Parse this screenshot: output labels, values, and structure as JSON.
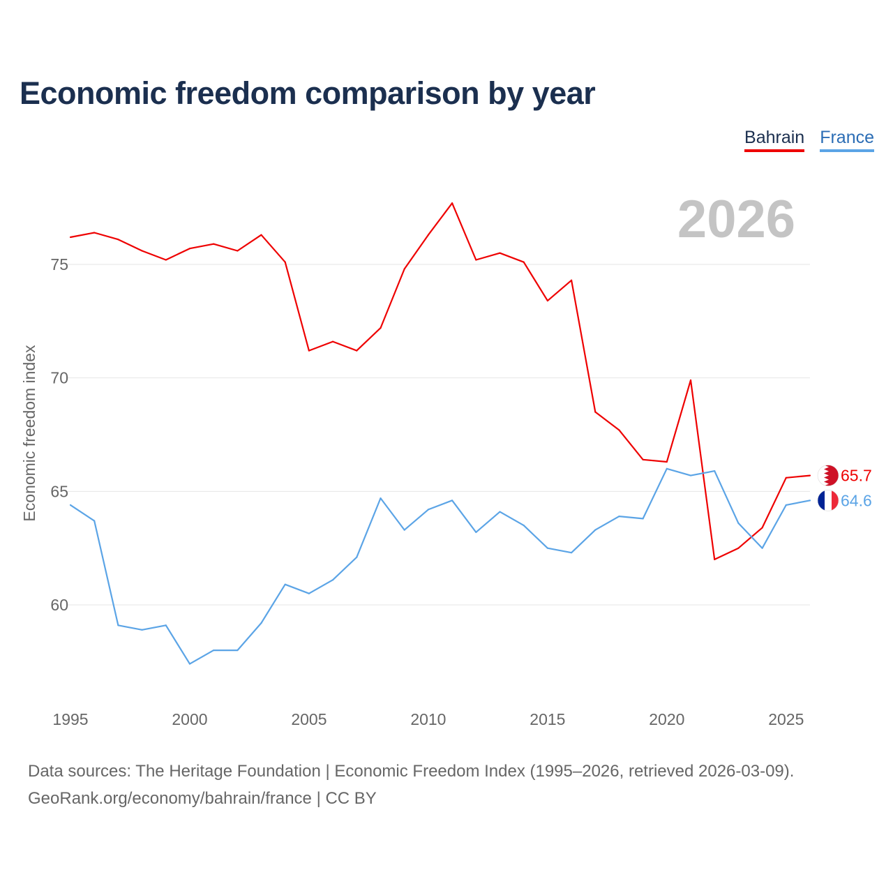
{
  "chart_data": {
    "type": "line",
    "title": "Economic freedom comparison by year",
    "ylabel": "Economic freedom index",
    "xlabel": "",
    "year_label": "2026",
    "x": [
      1995,
      1996,
      1997,
      1998,
      1999,
      2000,
      2001,
      2002,
      2003,
      2004,
      2005,
      2006,
      2007,
      2008,
      2009,
      2010,
      2011,
      2012,
      2013,
      2014,
      2015,
      2016,
      2017,
      2018,
      2019,
      2020,
      2021,
      2022,
      2023,
      2024,
      2025,
      2026
    ],
    "xlim": [
      1995,
      2026
    ],
    "ylim": [
      56.5,
      79
    ],
    "x_ticks": [
      1995,
      2000,
      2005,
      2010,
      2015,
      2020,
      2025
    ],
    "y_ticks": [
      60,
      65,
      70,
      75
    ],
    "series": [
      {
        "name": "Bahrain",
        "color": "#ee0000",
        "values": [
          76.2,
          76.4,
          76.1,
          75.6,
          75.2,
          75.7,
          75.9,
          75.6,
          76.3,
          75.1,
          71.2,
          71.6,
          71.2,
          72.2,
          74.8,
          76.3,
          77.7,
          75.2,
          75.5,
          75.1,
          73.4,
          74.3,
          68.5,
          67.7,
          66.4,
          66.3,
          69.9,
          62.0,
          62.5,
          63.4,
          65.6,
          65.7
        ],
        "end_label": "65.7",
        "flag_icon": "bahrain-flag-icon"
      },
      {
        "name": "France",
        "color": "#5ba4e6",
        "values": [
          64.4,
          63.7,
          59.1,
          58.9,
          59.1,
          57.4,
          58.0,
          58.0,
          59.2,
          60.9,
          60.5,
          61.1,
          62.1,
          64.7,
          63.3,
          64.2,
          64.6,
          63.2,
          64.1,
          63.5,
          62.5,
          62.3,
          63.3,
          63.9,
          63.8,
          66.0,
          65.7,
          65.9,
          63.6,
          62.5,
          64.4,
          64.6
        ],
        "end_label": "64.6",
        "flag_icon": "france-flag-icon"
      }
    ],
    "legend": [
      "Bahrain",
      "France"
    ],
    "legend_position": "top-right",
    "grid": true
  },
  "footer": {
    "sources": "Data sources: The Heritage Foundation | Economic Freedom Index (1995–2026, retrieved 2026-03-09).",
    "attribution": "GeoRank.org/economy/bahrain/france | CC BY"
  }
}
